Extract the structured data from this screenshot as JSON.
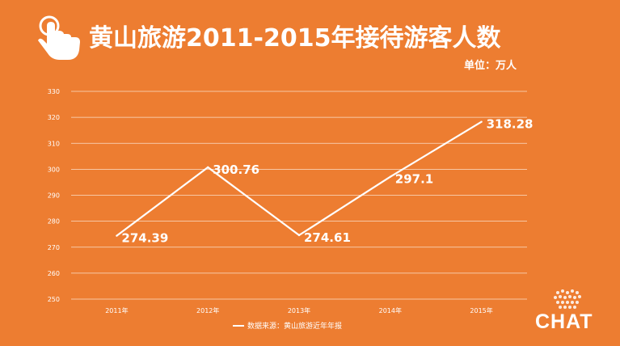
{
  "header": {
    "title": "黄山旅游2011-2015年接待游客人数",
    "unit": "单位：万人"
  },
  "source_note": "数据来源：黄山旅游近年年报",
  "logo_text": "CHAT",
  "icons": {
    "hand": "hand-pointer-icon",
    "logo": "chat-logo-icon"
  },
  "colors": {
    "background": "#ED7D31",
    "line": "#FFFFFF"
  },
  "chart_data": {
    "type": "line",
    "categories": [
      "2011年",
      "2012年",
      "2013年",
      "2014年",
      "2015年"
    ],
    "series": [
      {
        "values": [
          274.39,
          300.76,
          274.61,
          297.1,
          318.28
        ]
      }
    ],
    "data_labels": [
      "274.39",
      "300.76",
      "274.61",
      "297.1",
      "318.28"
    ],
    "ylim": [
      250,
      330
    ],
    "yticks": [
      250,
      260,
      270,
      280,
      290,
      300,
      310,
      320,
      330
    ],
    "ytick_labels": [
      "250",
      "260",
      "270",
      "280",
      "290",
      "300",
      "310",
      "320",
      "330"
    ],
    "grid": true,
    "legend": "bottom"
  }
}
